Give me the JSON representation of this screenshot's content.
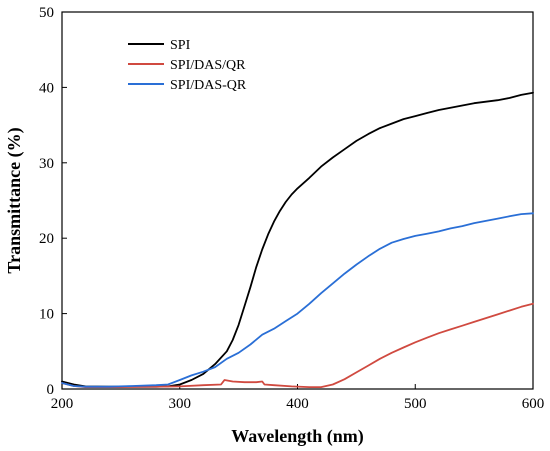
{
  "chart_data": {
    "type": "line",
    "xlabel": "Wavelength (nm)",
    "ylabel": "Transmittance (%)",
    "xlim": [
      200,
      600
    ],
    "ylim": [
      0,
      50
    ],
    "x_ticks": [
      200,
      300,
      400,
      500,
      600
    ],
    "y_ticks": [
      0,
      10,
      20,
      30,
      40,
      50
    ],
    "grid": false,
    "legend_position": "top-left",
    "series": [
      {
        "name": "SPI",
        "color": "#000000",
        "points": [
          [
            200,
            1.0
          ],
          [
            210,
            0.6
          ],
          [
            220,
            0.35
          ],
          [
            240,
            0.3
          ],
          [
            260,
            0.3
          ],
          [
            280,
            0.3
          ],
          [
            290,
            0.35
          ],
          [
            300,
            0.6
          ],
          [
            310,
            1.2
          ],
          [
            320,
            2.0
          ],
          [
            330,
            3.3
          ],
          [
            340,
            5.0
          ],
          [
            345,
            6.5
          ],
          [
            350,
            8.5
          ],
          [
            355,
            11.0
          ],
          [
            360,
            13.5
          ],
          [
            365,
            16.2
          ],
          [
            370,
            18.5
          ],
          [
            375,
            20.5
          ],
          [
            380,
            22.2
          ],
          [
            385,
            23.6
          ],
          [
            390,
            24.8
          ],
          [
            395,
            25.8
          ],
          [
            400,
            26.6
          ],
          [
            410,
            28.0
          ],
          [
            420,
            29.5
          ],
          [
            430,
            30.7
          ],
          [
            440,
            31.8
          ],
          [
            450,
            32.9
          ],
          [
            460,
            33.8
          ],
          [
            470,
            34.6
          ],
          [
            480,
            35.2
          ],
          [
            490,
            35.8
          ],
          [
            500,
            36.2
          ],
          [
            510,
            36.6
          ],
          [
            520,
            37.0
          ],
          [
            530,
            37.3
          ],
          [
            540,
            37.6
          ],
          [
            550,
            37.9
          ],
          [
            560,
            38.1
          ],
          [
            570,
            38.3
          ],
          [
            580,
            38.6
          ],
          [
            590,
            39.0
          ],
          [
            600,
            39.3
          ]
        ]
      },
      {
        "name": "SPI/DAS/QR",
        "color": "#d04a40",
        "points": [
          [
            200,
            0.8
          ],
          [
            210,
            0.4
          ],
          [
            220,
            0.25
          ],
          [
            250,
            0.25
          ],
          [
            280,
            0.3
          ],
          [
            300,
            0.35
          ],
          [
            320,
            0.5
          ],
          [
            335,
            0.6
          ],
          [
            338,
            1.2
          ],
          [
            345,
            1.0
          ],
          [
            355,
            0.9
          ],
          [
            365,
            0.9
          ],
          [
            370,
            1.0
          ],
          [
            372,
            0.6
          ],
          [
            380,
            0.5
          ],
          [
            395,
            0.35
          ],
          [
            410,
            0.25
          ],
          [
            420,
            0.25
          ],
          [
            430,
            0.6
          ],
          [
            440,
            1.3
          ],
          [
            450,
            2.2
          ],
          [
            460,
            3.1
          ],
          [
            470,
            4.0
          ],
          [
            480,
            4.8
          ],
          [
            490,
            5.5
          ],
          [
            500,
            6.2
          ],
          [
            510,
            6.8
          ],
          [
            520,
            7.4
          ],
          [
            530,
            7.9
          ],
          [
            540,
            8.4
          ],
          [
            550,
            8.9
          ],
          [
            560,
            9.4
          ],
          [
            570,
            9.9
          ],
          [
            580,
            10.4
          ],
          [
            590,
            10.9
          ],
          [
            600,
            11.3
          ]
        ]
      },
      {
        "name": "SPI/DAS-QR",
        "color": "#2a6fd6",
        "points": [
          [
            200,
            0.8
          ],
          [
            210,
            0.4
          ],
          [
            220,
            0.3
          ],
          [
            240,
            0.3
          ],
          [
            260,
            0.4
          ],
          [
            280,
            0.5
          ],
          [
            290,
            0.6
          ],
          [
            300,
            1.2
          ],
          [
            310,
            1.8
          ],
          [
            320,
            2.3
          ],
          [
            330,
            2.9
          ],
          [
            340,
            4.0
          ],
          [
            350,
            4.8
          ],
          [
            360,
            5.9
          ],
          [
            370,
            7.2
          ],
          [
            380,
            8.0
          ],
          [
            390,
            9.0
          ],
          [
            400,
            10.0
          ],
          [
            410,
            11.3
          ],
          [
            420,
            12.7
          ],
          [
            430,
            14.0
          ],
          [
            440,
            15.3
          ],
          [
            450,
            16.5
          ],
          [
            460,
            17.6
          ],
          [
            470,
            18.6
          ],
          [
            480,
            19.4
          ],
          [
            490,
            19.9
          ],
          [
            500,
            20.3
          ],
          [
            510,
            20.6
          ],
          [
            520,
            20.9
          ],
          [
            530,
            21.3
          ],
          [
            540,
            21.6
          ],
          [
            550,
            22.0
          ],
          [
            560,
            22.3
          ],
          [
            570,
            22.6
          ],
          [
            580,
            22.9
          ],
          [
            590,
            23.2
          ],
          [
            600,
            23.3
          ]
        ]
      }
    ]
  }
}
